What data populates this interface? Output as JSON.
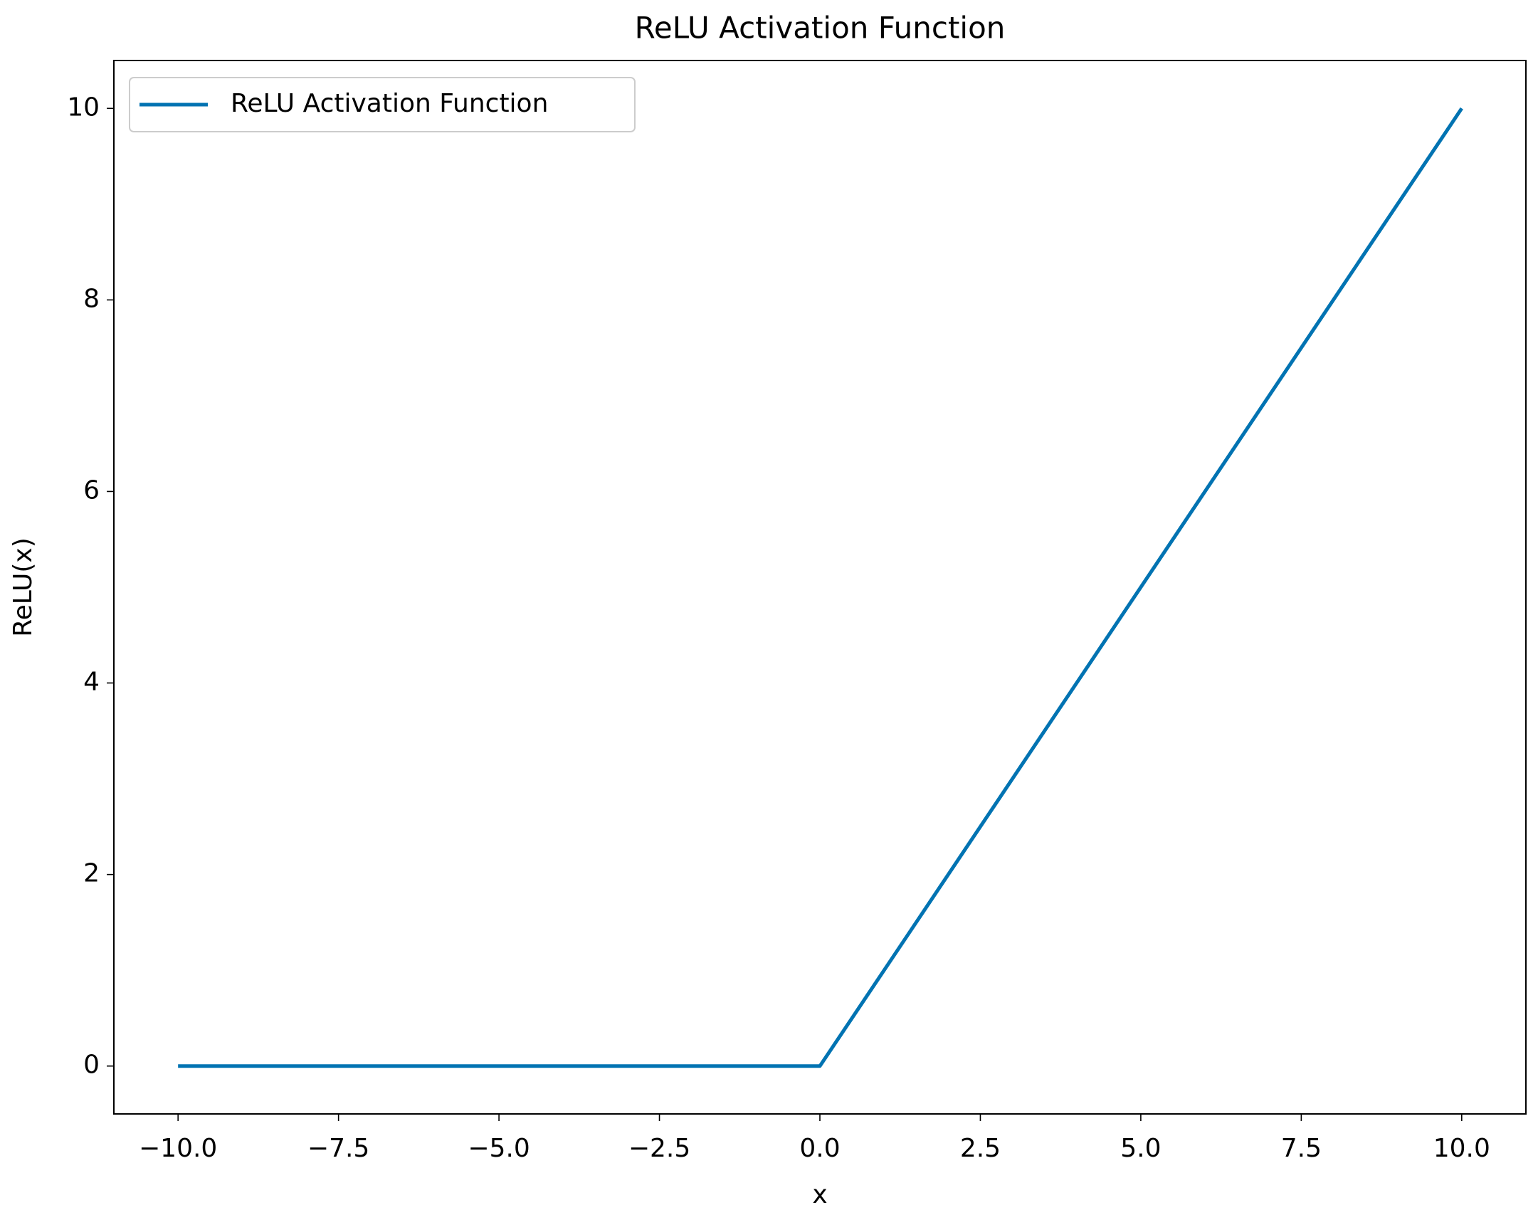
{
  "chart_data": {
    "type": "line",
    "title": "ReLU Activation Function",
    "x_label": "x",
    "y_label": "ReLU(x)",
    "x": [
      -10,
      0,
      10
    ],
    "series": [
      {
        "name": "ReLU Activation Function",
        "color": "#0173b2",
        "values": [
          0,
          0,
          10
        ]
      }
    ],
    "xlim": [
      -11,
      11
    ],
    "ylim": [
      -0.5,
      10.5
    ],
    "xticks": [
      {
        "value": -10,
        "label": "−10.0"
      },
      {
        "value": -7.5,
        "label": "−7.5"
      },
      {
        "value": -5,
        "label": "−5.0"
      },
      {
        "value": -2.5,
        "label": "−2.5"
      },
      {
        "value": 0,
        "label": "0.0"
      },
      2.5,
      {
        "value": 5,
        "label": "5.0"
      },
      7.5,
      {
        "value": 10,
        "label": "10.0"
      }
    ],
    "yticks": [
      0,
      2,
      4,
      6,
      8,
      10
    ],
    "grid": false,
    "legend": "upper left"
  }
}
